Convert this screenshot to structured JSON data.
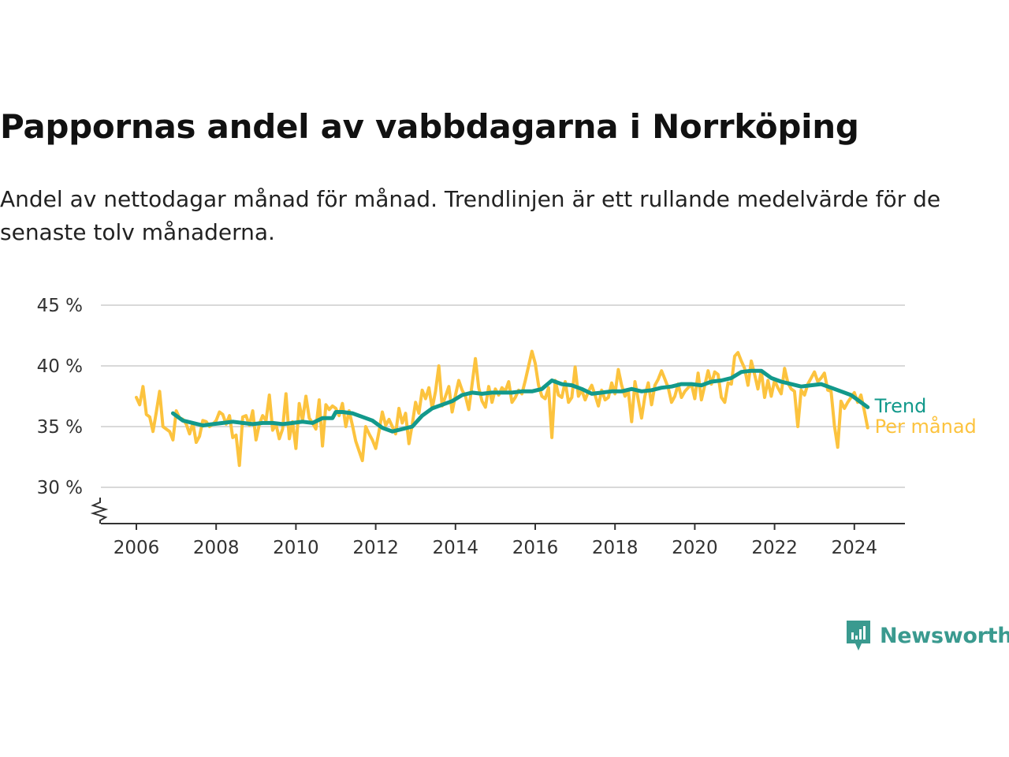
{
  "title": "Pappornas andel av vabbdagarna i Norrköping",
  "subtitle": "Andel av nettodagar månad för månad. Trendlinjen är ett rullande medelvärde för de senaste tolv månaderna.",
  "brand": {
    "name": "Newsworthy",
    "color": "#3a9a8f",
    "icon": "bar-chart-speech-bubble-icon"
  },
  "chart_data": {
    "type": "line",
    "x_type": "date",
    "ylim": [
      28,
      45
    ],
    "yticks": [
      {
        "value": 30,
        "label": "30 %"
      },
      {
        "value": 35,
        "label": "35 %"
      },
      {
        "value": 40,
        "label": "40 %"
      },
      {
        "value": 45,
        "label": "45 %"
      }
    ],
    "xlim": [
      "2005-01",
      "2025-03"
    ],
    "xticks": [
      "2006",
      "2008",
      "2010",
      "2012",
      "2014",
      "2016",
      "2018",
      "2020",
      "2022",
      "2024"
    ],
    "y_axis_break": true,
    "grid": "horizontal",
    "legend": "direct labels at line ends",
    "series": [
      {
        "name": "Per månad",
        "color": "#fcc33e",
        "x": [
          "2006-01",
          "2006-02",
          "2006-03",
          "2006-04",
          "2006-05",
          "2006-06",
          "2006-07",
          "2006-08",
          "2006-09",
          "2006-10",
          "2006-11",
          "2006-12",
          "2007-01",
          "2007-02",
          "2007-03",
          "2007-04",
          "2007-05",
          "2007-06",
          "2007-07",
          "2007-08",
          "2007-09",
          "2007-10",
          "2007-11",
          "2007-12",
          "2008-01",
          "2008-02",
          "2008-03",
          "2008-04",
          "2008-05",
          "2008-06",
          "2008-07",
          "2008-08",
          "2008-09",
          "2008-10",
          "2008-11",
          "2008-12",
          "2009-01",
          "2009-02",
          "2009-03",
          "2009-04",
          "2009-05",
          "2009-06",
          "2009-07",
          "2009-08",
          "2009-09",
          "2009-10",
          "2009-11",
          "2009-12",
          "2010-01",
          "2010-02",
          "2010-03",
          "2010-04",
          "2010-05",
          "2010-06",
          "2010-07",
          "2010-08",
          "2010-09",
          "2010-10",
          "2010-11",
          "2010-12",
          "2011-01",
          "2011-02",
          "2011-03",
          "2011-04",
          "2011-05",
          "2011-06",
          "2011-07",
          "2011-08",
          "2011-09",
          "2011-10",
          "2011-11",
          "2011-12",
          "2012-01",
          "2012-02",
          "2012-03",
          "2012-04",
          "2012-05",
          "2012-06",
          "2012-07",
          "2012-08",
          "2012-09",
          "2012-10",
          "2012-11",
          "2012-12",
          "2013-01",
          "2013-02",
          "2013-03",
          "2013-04",
          "2013-05",
          "2013-06",
          "2013-07",
          "2013-08",
          "2013-09",
          "2013-10",
          "2013-11",
          "2013-12",
          "2014-01",
          "2014-02",
          "2014-03",
          "2014-04",
          "2014-05",
          "2014-06",
          "2014-07",
          "2014-08",
          "2014-09",
          "2014-10",
          "2014-11",
          "2014-12",
          "2015-01",
          "2015-02",
          "2015-03",
          "2015-04",
          "2015-05",
          "2015-06",
          "2015-07",
          "2015-08",
          "2015-09",
          "2015-10",
          "2015-11",
          "2015-12",
          "2016-01",
          "2016-02",
          "2016-03",
          "2016-04",
          "2016-05",
          "2016-06",
          "2016-07",
          "2016-08",
          "2016-09",
          "2016-10",
          "2016-11",
          "2016-12",
          "2017-01",
          "2017-02",
          "2017-03",
          "2017-04",
          "2017-05",
          "2017-06",
          "2017-07",
          "2017-08",
          "2017-09",
          "2017-10",
          "2017-11",
          "2017-12",
          "2018-01",
          "2018-02",
          "2018-03",
          "2018-04",
          "2018-05",
          "2018-06",
          "2018-07",
          "2018-08",
          "2018-09",
          "2018-10",
          "2018-11",
          "2018-12",
          "2019-01",
          "2019-02",
          "2019-03",
          "2019-04",
          "2019-05",
          "2019-06",
          "2019-07",
          "2019-08",
          "2019-09",
          "2019-10",
          "2019-11",
          "2019-12",
          "2020-01",
          "2020-02",
          "2020-03",
          "2020-04",
          "2020-05",
          "2020-06",
          "2020-07",
          "2020-08",
          "2020-09",
          "2020-10",
          "2020-11",
          "2020-12",
          "2021-01",
          "2021-02",
          "2021-03",
          "2021-04",
          "2021-05",
          "2021-06",
          "2021-07",
          "2021-08",
          "2021-09",
          "2021-10",
          "2021-11",
          "2021-12",
          "2022-01",
          "2022-02",
          "2022-03",
          "2022-04",
          "2022-05",
          "2022-06",
          "2022-07",
          "2022-08",
          "2022-09",
          "2022-10",
          "2022-11",
          "2022-12",
          "2023-01",
          "2023-02",
          "2023-03",
          "2023-04",
          "2023-05",
          "2023-06",
          "2023-07",
          "2023-08",
          "2023-09",
          "2023-10",
          "2023-11",
          "2023-12",
          "2024-01",
          "2024-02",
          "2024-03",
          "2024-04",
          "2024-05"
        ],
        "values": [
          37.4,
          36.8,
          38.3,
          36.0,
          35.8,
          34.6,
          36.2,
          37.9,
          35.0,
          34.8,
          34.6,
          33.9,
          36.3,
          35.7,
          35.6,
          35.2,
          34.4,
          35.3,
          33.7,
          34.2,
          35.5,
          35.4,
          35.0,
          35.2,
          35.5,
          36.2,
          36.0,
          35.2,
          35.9,
          34.1,
          34.3,
          31.8,
          35.8,
          35.9,
          35.1,
          36.3,
          33.9,
          35.2,
          35.9,
          35.5,
          37.6,
          34.7,
          35.2,
          34.0,
          34.8,
          37.7,
          34.0,
          35.4,
          33.2,
          36.9,
          35.5,
          37.5,
          35.7,
          35.3,
          34.8,
          37.2,
          33.4,
          36.8,
          36.4,
          36.7,
          36.5,
          35.9,
          36.9,
          35.0,
          36.3,
          35.1,
          33.8,
          33.0,
          32.2,
          35.0,
          34.4,
          33.9,
          33.2,
          34.6,
          36.2,
          35.1,
          35.6,
          35.0,
          34.4,
          36.5,
          35.3,
          36.1,
          33.6,
          35.2,
          37.0,
          36.1,
          38.0,
          37.3,
          38.2,
          36.5,
          37.9,
          40.0,
          36.7,
          37.5,
          38.3,
          36.2,
          37.6,
          38.8,
          38.0,
          37.5,
          36.4,
          38.5,
          40.6,
          38.2,
          37.1,
          36.6,
          38.3,
          37.0,
          38.1,
          37.6,
          38.2,
          37.9,
          38.7,
          37.0,
          37.4,
          38.0,
          37.7,
          38.8,
          40.0,
          41.2,
          40.2,
          38.4,
          37.5,
          37.3,
          38.2,
          34.1,
          38.8,
          37.6,
          37.4,
          38.7,
          37.0,
          37.4,
          39.9,
          37.5,
          38.0,
          37.2,
          37.9,
          38.4,
          37.6,
          36.7,
          38.0,
          37.2,
          37.4,
          38.6,
          37.7,
          39.7,
          38.4,
          37.5,
          37.9,
          35.4,
          38.7,
          37.2,
          35.7,
          37.5,
          38.6,
          36.8,
          38.4,
          38.9,
          39.6,
          38.9,
          38.2,
          37.0,
          37.5,
          38.5,
          37.4,
          37.9,
          38.2,
          38.5,
          37.3,
          39.4,
          37.2,
          38.4,
          39.6,
          38.5,
          39.5,
          39.3,
          37.4,
          37.0,
          38.6,
          38.5,
          40.8,
          41.1,
          40.4,
          39.8,
          38.4,
          40.4,
          39.3,
          38.1,
          39.6,
          37.4,
          38.8,
          37.5,
          38.8,
          38.2,
          37.7,
          39.8,
          38.6,
          38.1,
          37.9,
          35.0,
          38.0,
          37.6,
          38.5,
          39.0,
          39.5,
          38.7,
          39.0,
          39.4,
          38.0,
          37.9,
          35.1,
          33.3,
          37.1,
          36.5,
          37.0,
          37.4,
          37.8,
          37.0,
          37.6,
          36.3,
          34.9
        ]
      },
      {
        "name": "Trend",
        "color": "#12998b",
        "x": [
          "2006-12",
          "2007-03",
          "2007-06",
          "2007-09",
          "2007-12",
          "2008-03",
          "2008-06",
          "2008-09",
          "2008-12",
          "2009-03",
          "2009-06",
          "2009-09",
          "2009-12",
          "2010-03",
          "2010-06",
          "2010-09",
          "2010-12",
          "2011-01",
          "2011-03",
          "2011-06",
          "2011-09",
          "2011-12",
          "2012-03",
          "2012-06",
          "2012-09",
          "2012-12",
          "2013-03",
          "2013-06",
          "2013-09",
          "2013-12",
          "2014-03",
          "2014-06",
          "2014-09",
          "2014-12",
          "2015-03",
          "2015-06",
          "2015-09",
          "2015-12",
          "2016-03",
          "2016-06",
          "2016-09",
          "2016-12",
          "2017-03",
          "2017-06",
          "2017-09",
          "2017-12",
          "2018-03",
          "2018-06",
          "2018-09",
          "2018-12",
          "2019-03",
          "2019-06",
          "2019-09",
          "2019-12",
          "2020-03",
          "2020-06",
          "2020-09",
          "2020-12",
          "2021-03",
          "2021-06",
          "2021-09",
          "2021-12",
          "2022-03",
          "2022-06",
          "2022-09",
          "2022-12",
          "2023-03",
          "2023-06",
          "2023-09",
          "2023-12",
          "2024-03",
          "2024-05"
        ],
        "values": [
          36.1,
          35.5,
          35.3,
          35.1,
          35.2,
          35.3,
          35.4,
          35.3,
          35.2,
          35.3,
          35.3,
          35.2,
          35.3,
          35.4,
          35.3,
          35.7,
          35.7,
          36.2,
          36.2,
          36.1,
          35.8,
          35.5,
          34.9,
          34.6,
          34.8,
          35.0,
          35.9,
          36.5,
          36.8,
          37.1,
          37.6,
          37.8,
          37.7,
          37.8,
          37.8,
          37.8,
          37.9,
          37.9,
          38.1,
          38.8,
          38.5,
          38.4,
          38.1,
          37.7,
          37.8,
          37.9,
          37.9,
          38.1,
          37.9,
          38.0,
          38.2,
          38.3,
          38.5,
          38.5,
          38.4,
          38.7,
          38.8,
          39.0,
          39.5,
          39.6,
          39.6,
          39.0,
          38.7,
          38.5,
          38.3,
          38.4,
          38.5,
          38.2,
          37.9,
          37.6,
          37.0,
          36.6
        ]
      }
    ]
  }
}
